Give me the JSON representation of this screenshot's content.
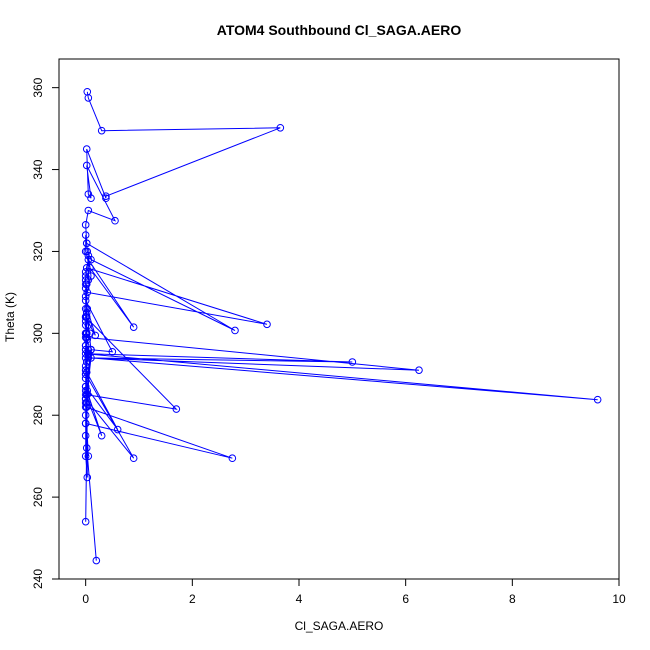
{
  "chart_data": {
    "type": "line",
    "title": "ATOM4 Southbound Cl_SAGA.AERO",
    "xlabel": "Cl_SAGA.AERO",
    "ylabel": "Theta (K)",
    "xlim": [
      -0.5,
      10
    ],
    "ylim": [
      240,
      367
    ],
    "x_ticks": [
      0,
      2,
      4,
      6,
      8,
      10
    ],
    "y_ticks": [
      240,
      260,
      280,
      300,
      320,
      340,
      360
    ],
    "grid": false,
    "legend": "none",
    "markers": "open-circle",
    "colors": {
      "series": "#0000ff",
      "axes": "#000000"
    },
    "series": [
      {
        "x": [
          0.03,
          0.05,
          0.3,
          3.65,
          0.38,
          0.38,
          0.02,
          0.05,
          0.1,
          0.02,
          0.55,
          0.05,
          0.0,
          0.02,
          0.03,
          0.1,
          2.8,
          0.02,
          0.0,
          0.0,
          0.08,
          0.9,
          0.05,
          0.0,
          0.05,
          0.05,
          0.1,
          0.03,
          3.4,
          0.02,
          0.0,
          0.0,
          0.02,
          0.02,
          0.0,
          0.0,
          0.03,
          0.18,
          0.0,
          0.0,
          0.0,
          0.05,
          0.1,
          0.5,
          0.0,
          0.02,
          0.02,
          0.0,
          0.08,
          0.0,
          0.0,
          0.0,
          0.05,
          0.0,
          0.03,
          0.0,
          0.06,
          0.0,
          0.0,
          0.0,
          0.04,
          5.0,
          0.05,
          0.0,
          0.02,
          0.0,
          0.02,
          6.25,
          0.0,
          0.1,
          0.03,
          0.1,
          9.6,
          0.0,
          0.0,
          0.05,
          0.02,
          0.0,
          0.02,
          0.0,
          0.0,
          0.3,
          0.0,
          0.6,
          0.0,
          0.02,
          0.0,
          0.9,
          0.0,
          0.0,
          0.0,
          0.02,
          1.7,
          0.0,
          0.0,
          0.05,
          0.0,
          2.75,
          0.0,
          0.0,
          0.03,
          0.02,
          0.0,
          0.1,
          0.0,
          0.0,
          0.03,
          0.0,
          0.02,
          0.2,
          0.0
        ],
        "y": [
          359,
          357.5,
          349.5,
          350.2,
          333.5,
          333.0,
          345,
          334,
          333,
          341,
          327.5,
          330,
          326.5,
          322,
          320,
          318,
          300.7,
          322,
          324,
          320,
          316,
          301.5,
          318,
          315,
          313,
          319,
          314,
          310,
          302.2,
          316,
          314,
          311,
          312,
          305,
          313,
          309,
          306,
          299.5,
          304,
          312,
          306,
          302,
          296,
          295.5,
          308,
          304,
          300,
          302,
          300,
          296,
          303,
          292,
          295,
          299,
          298.5,
          296,
          295,
          297,
          304,
          290,
          295,
          293,
          294,
          297,
          290.5,
          300,
          299,
          291,
          294,
          296,
          286,
          294,
          283.8,
          295,
          289,
          296,
          293,
          291,
          282,
          287,
          285,
          275,
          287,
          276.5,
          291,
          283,
          284,
          269.5,
          290,
          300,
          284,
          285,
          281.5,
          304,
          283,
          270,
          278,
          269.5,
          282,
          270,
          264.8,
          300,
          278,
          296,
          286,
          280,
          285,
          254,
          272,
          244.5,
          275
        ]
      }
    ]
  }
}
